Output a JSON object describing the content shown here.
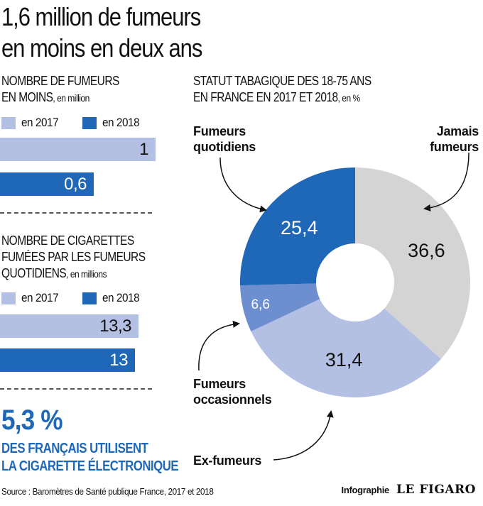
{
  "title_line1": "1,6 million de fumeurs",
  "title_line2": "en moins en deux ans",
  "smokers": {
    "header_line1": "NOMBRE DE FUMEURS",
    "header_line2": "EN MOINS",
    "unit": ", en million",
    "legend_2017": "en 2017",
    "legend_2018": "en 2018",
    "val_2017": "1",
    "val_2018": "0,6"
  },
  "cigarettes": {
    "header_line1": "NOMBRE DE CIGARETTES",
    "header_line2": "FUMÉES PAR LES FUMEURS",
    "header_line3": "QUOTIDIENS",
    "unit": ", en millions",
    "legend_2017": "en 2017",
    "legend_2018": "en 2018",
    "val_2017": "13,3",
    "val_2018": "13"
  },
  "ecig": {
    "percent": "5,3 %",
    "line1": "DES FRANÇAIS UTILISENT",
    "line2": "LA CIGARETTE ÉLECTRONIQUE"
  },
  "donut": {
    "header_line1": "STATUT TABAGIQUE DES 18-75 ANS",
    "header_line2": "EN FRANCE EN 2017 ET 2018",
    "unit": ", en %",
    "labels": {
      "quotidiens_1": "Fumeurs",
      "quotidiens_2": "quotidiens",
      "jamais_1": "Jamais",
      "jamais_2": "fumeurs",
      "occasionnels_1": "Fumeurs",
      "occasionnels_2": "occasionnels",
      "ex": "Ex-fumeurs"
    }
  },
  "source": "Source : Baromètres de Santé publique France, 2017 et 2018",
  "credit_label": "Infographie",
  "credit_logo": "LE FIGARO",
  "colors": {
    "dark_blue": "#1f68b8",
    "mid_blue": "#6d8fd0",
    "light_blue": "#b4c0e3",
    "grey": "#d4d4d4"
  },
  "chart_data": [
    {
      "type": "bar",
      "orientation": "horizontal",
      "title": "NOMBRE DE FUMEURS EN MOINS, en million",
      "series": [
        {
          "name": "en 2017",
          "values": [
            1
          ]
        },
        {
          "name": "en 2018",
          "values": [
            0.6
          ]
        }
      ],
      "value_labels": [
        "1",
        "0,6"
      ],
      "xlim": [
        0,
        1
      ]
    },
    {
      "type": "bar",
      "orientation": "horizontal",
      "title": "NOMBRE DE CIGARETTES FUMÉES PAR LES FUMEURS QUOTIDIENS, en millions",
      "series": [
        {
          "name": "en 2017",
          "values": [
            13.3
          ]
        },
        {
          "name": "en 2018",
          "values": [
            13
          ]
        }
      ],
      "value_labels": [
        "13,3",
        "13"
      ],
      "xlim": [
        0,
        15
      ]
    },
    {
      "type": "pie",
      "donut": true,
      "title": "STATUT TABAGIQUE DES 18-75 ANS EN FRANCE EN 2017 ET 2018, en %",
      "slices": [
        {
          "name": "Jamais fumeurs",
          "value": 36.6,
          "label": "36,6",
          "color": "#d4d4d4"
        },
        {
          "name": "Ex-fumeurs",
          "value": 31.4,
          "label": "31,4",
          "color": "#b4c0e3"
        },
        {
          "name": "Fumeurs occasionnels",
          "value": 6.6,
          "label": "6,6",
          "color": "#6d8fd0"
        },
        {
          "name": "Fumeurs quotidiens",
          "value": 25.4,
          "label": "25,4",
          "color": "#1f68b8"
        }
      ]
    }
  ]
}
